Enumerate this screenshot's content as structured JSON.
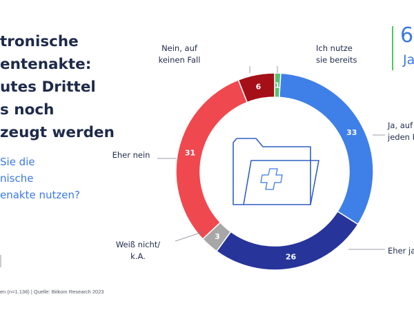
{
  "title": "tronische\nentenakte:\nutes Drittel\ns noch\nzeugt werden",
  "question": "Sie die\nnische\nenakte nutzen?",
  "footer": "en (n=1.138) | Quelle: Bitkom Research 2023",
  "kpi": {
    "value": "6",
    "label": "Ja",
    "accent": "#4cc85a"
  },
  "icon": "medical-folder-icon",
  "colors": {
    "Ich nutze sie bereits": "#56c26a",
    "Ja, auf jeden Fall": "#3f7fe8",
    "Eher ja": "#27349a",
    "Weiß nicht/ k.A.": "#a7a7a7",
    "Eher nein": "#f0484f",
    "Nein, auf keinen Fall": "#a50f17"
  },
  "chart_data": {
    "type": "pie",
    "donut": true,
    "title": "",
    "categories": [
      "Ich nutze sie bereits",
      "Ja, auf jeden Fall",
      "Eher ja",
      "Weiß nicht/ k.A.",
      "Eher nein",
      "Nein, auf keinen Fall"
    ],
    "values": [
      1,
      33,
      26,
      3,
      31,
      6
    ],
    "labels": [
      [
        "Ich nutze",
        "sie bereits"
      ],
      [
        "Ja, auf",
        "jeden F"
      ],
      [
        "Eher ja"
      ],
      [
        "Weiß nicht/",
        "k.A."
      ],
      [
        "Eher nein"
      ],
      [
        "Nein, auf",
        "keinen Fall"
      ]
    ]
  }
}
